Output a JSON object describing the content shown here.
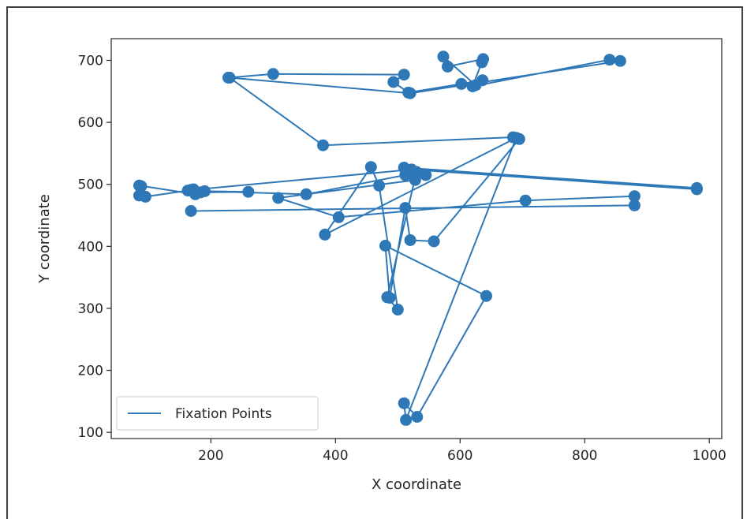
{
  "chart_data": {
    "type": "line",
    "title": "",
    "xlabel": "X coordinate",
    "ylabel": "Y coordinate",
    "xlim": [
      40,
      1020
    ],
    "ylim": [
      90,
      735
    ],
    "xticks": [
      200,
      400,
      600,
      800,
      1000
    ],
    "yticks": [
      100,
      200,
      300,
      400,
      500,
      600,
      700
    ],
    "grid": false,
    "legend_position": "lower-left",
    "line_color": "#2e78b7",
    "marker": "circle",
    "series": [
      {
        "name": "Fixation Points",
        "points": [
          [
            228,
            672
          ],
          [
            300,
            678
          ],
          [
            510,
            677
          ],
          [
            493,
            665
          ],
          [
            517,
            648
          ],
          [
            602,
            662
          ],
          [
            636,
            668
          ],
          [
            625,
            660
          ],
          [
            573,
            706
          ],
          [
            580,
            690
          ],
          [
            637,
            702
          ],
          [
            635,
            697
          ],
          [
            620,
            658
          ],
          [
            840,
            701
          ],
          [
            857,
            699
          ],
          [
            520,
            647
          ],
          [
            230,
            672
          ],
          [
            380,
            563
          ],
          [
            685,
            576
          ],
          [
            695,
            573
          ],
          [
            558,
            408
          ],
          [
            520,
            410
          ],
          [
            512,
            462
          ],
          [
            487,
            317
          ],
          [
            480,
            401
          ],
          [
            642,
            320
          ],
          [
            531,
            125
          ],
          [
            510,
            147
          ],
          [
            513,
            120
          ],
          [
            690,
            575
          ],
          [
            383,
            419
          ],
          [
            457,
            528
          ],
          [
            470,
            498
          ],
          [
            500,
            298
          ],
          [
            483,
            318
          ],
          [
            530,
            520
          ],
          [
            545,
            515
          ],
          [
            510,
            527
          ],
          [
            980,
            494
          ],
          [
            980,
            492
          ],
          [
            522,
            524
          ],
          [
            168,
            491
          ],
          [
            172,
            492
          ],
          [
            190,
            489
          ],
          [
            260,
            488
          ],
          [
            183,
            487
          ],
          [
            175,
            484
          ],
          [
            85,
            498
          ],
          [
            88,
            497
          ],
          [
            85,
            482
          ],
          [
            95,
            480
          ],
          [
            163,
            490
          ],
          [
            353,
            484
          ],
          [
            512,
            515
          ],
          [
            528,
            507
          ],
          [
            308,
            478
          ],
          [
            405,
            447
          ],
          [
            705,
            474
          ],
          [
            880,
            481
          ],
          [
            880,
            466
          ],
          [
            168,
            457
          ]
        ]
      }
    ]
  }
}
